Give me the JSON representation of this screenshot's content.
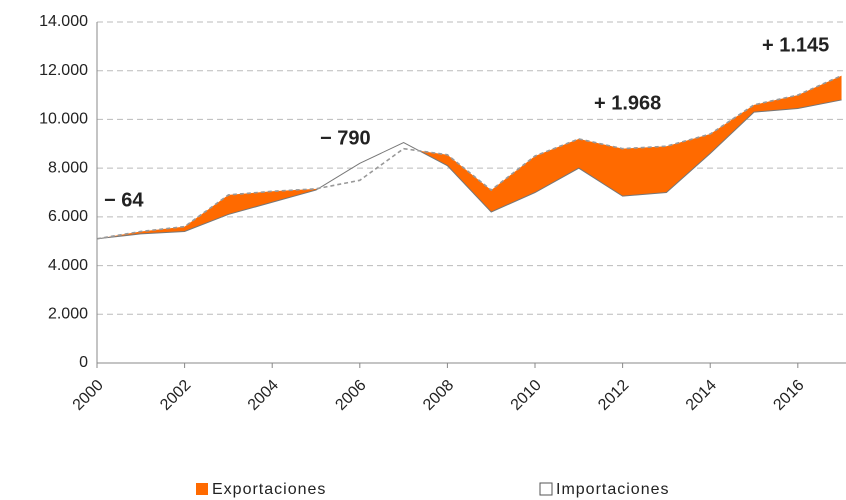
{
  "chart_data": {
    "type": "area-difference",
    "x": [
      2000,
      2001,
      2002,
      2003,
      2004,
      2005,
      2006,
      2007,
      2008,
      2009,
      2010,
      2011,
      2012,
      2013,
      2014,
      2015,
      2016,
      2017
    ],
    "series": [
      {
        "name": "Exportaciones",
        "color": "#ff6a00",
        "values": [
          5100,
          5400,
          5600,
          6900,
          7050,
          7150,
          7500,
          8800,
          8550,
          7100,
          8500,
          9200,
          8800,
          8900,
          9400,
          10600,
          11000,
          11800
        ]
      },
      {
        "name": "Importaciones",
        "color": "#ffffff",
        "values": [
          5100,
          5300,
          5400,
          6100,
          6600,
          7100,
          8200,
          9050,
          8100,
          6200,
          7000,
          8000,
          6850,
          7000,
          8600,
          10300,
          10450,
          10800
        ]
      }
    ],
    "xlim": [
      2000,
      2017.1
    ],
    "xticks": [
      2000,
      2002,
      2004,
      2006,
      2008,
      2010,
      2012,
      2014,
      2016
    ],
    "ylim": [
      0,
      14000
    ],
    "yticks": [
      0,
      {
        "value": 2000,
        "label": "2.000"
      },
      {
        "value": 4000,
        "label": "4.000"
      },
      {
        "value": 6000,
        "label": "6.000"
      },
      {
        "value": 8000,
        "label": "8.000"
      },
      {
        "value": 10000,
        "label": "10.000"
      },
      {
        "value": 12000,
        "label": "12.000"
      },
      {
        "value": 14000,
        "label": "14.000"
      }
    ],
    "grid": true,
    "annotations": [
      {
        "text": "− 64",
        "color": "#e8141b"
      },
      {
        "text": "− 790",
        "color": "#e8141b"
      },
      {
        "text": "+ 1.968",
        "color": "#333333"
      },
      {
        "text": "+ 1.145",
        "color": "#333333"
      }
    ]
  }
}
